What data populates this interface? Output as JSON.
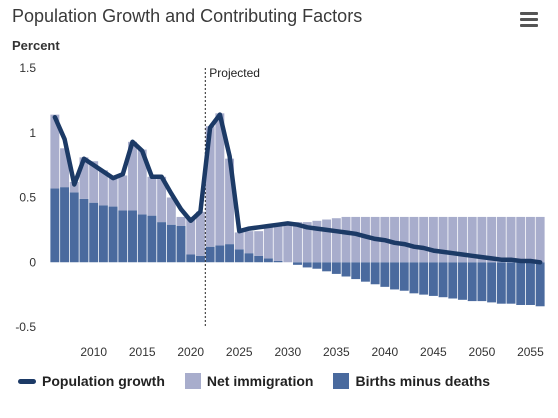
{
  "header": {
    "title": "Population Growth and Contributing Factors",
    "menu_icon": "hamburger-menu-icon"
  },
  "chart_data": {
    "type": "bar",
    "title": "Population Growth and Contributing Factors",
    "ylabel": "Percent",
    "xlabel": "",
    "ylim": [
      -0.5,
      1.5
    ],
    "xlim": [
      2005.5,
      2056.5
    ],
    "yticks": [
      1.5,
      1,
      0.5,
      0,
      -0.5
    ],
    "ytick_labels": [
      "1.5",
      "1",
      "0.5",
      "0",
      "-0.5"
    ],
    "xticks": [
      2010,
      2015,
      2020,
      2025,
      2030,
      2035,
      2040,
      2045,
      2050,
      2055
    ],
    "annotation": {
      "label": "Projected",
      "x": 2021.5
    },
    "years": [
      2006,
      2007,
      2008,
      2009,
      2010,
      2011,
      2012,
      2013,
      2014,
      2015,
      2016,
      2017,
      2018,
      2019,
      2020,
      2021,
      2022,
      2023,
      2024,
      2025,
      2026,
      2027,
      2028,
      2029,
      2030,
      2031,
      2032,
      2033,
      2034,
      2035,
      2036,
      2037,
      2038,
      2039,
      2040,
      2041,
      2042,
      2043,
      2044,
      2045,
      2046,
      2047,
      2048,
      2049,
      2050,
      2051,
      2052,
      2053,
      2054,
      2055,
      2056
    ],
    "series": [
      {
        "name": "Births minus deaths",
        "kind": "bar",
        "color": "#4a6a9e",
        "values": [
          0.57,
          0.58,
          0.54,
          0.49,
          0.46,
          0.44,
          0.43,
          0.4,
          0.4,
          0.37,
          0.36,
          0.31,
          0.29,
          0.28,
          0.06,
          0.05,
          0.12,
          0.13,
          0.14,
          0.1,
          0.07,
          0.05,
          0.03,
          0.01,
          0.0,
          -0.02,
          -0.04,
          -0.05,
          -0.07,
          -0.09,
          -0.11,
          -0.13,
          -0.15,
          -0.17,
          -0.19,
          -0.21,
          -0.22,
          -0.24,
          -0.25,
          -0.26,
          -0.27,
          -0.28,
          -0.29,
          -0.3,
          -0.3,
          -0.31,
          -0.32,
          -0.32,
          -0.33,
          -0.33,
          -0.34
        ]
      },
      {
        "name": "Net immigration",
        "kind": "bar",
        "color": "#a8adcc",
        "values": [
          0.57,
          0.3,
          0.08,
          0.32,
          0.32,
          0.27,
          0.22,
          0.27,
          0.53,
          0.5,
          0.3,
          0.35,
          0.21,
          0.07,
          0.29,
          0.34,
          0.93,
          1.02,
          0.66,
          0.13,
          0.17,
          0.19,
          0.24,
          0.27,
          0.3,
          0.31,
          0.31,
          0.32,
          0.33,
          0.34,
          0.35,
          0.35,
          0.35,
          0.35,
          0.35,
          0.35,
          0.35,
          0.35,
          0.35,
          0.35,
          0.35,
          0.35,
          0.35,
          0.35,
          0.35,
          0.35,
          0.35,
          0.35,
          0.35,
          0.35,
          0.35
        ]
      },
      {
        "name": "Population growth",
        "kind": "line",
        "color": "#1c3a66",
        "values": [
          1.12,
          0.95,
          0.6,
          0.8,
          0.75,
          0.7,
          0.65,
          0.68,
          0.93,
          0.86,
          0.66,
          0.66,
          0.53,
          0.41,
          0.32,
          0.39,
          1.04,
          1.14,
          0.82,
          0.24,
          0.26,
          0.27,
          0.28,
          0.29,
          0.3,
          0.29,
          0.27,
          0.26,
          0.25,
          0.24,
          0.23,
          0.22,
          0.2,
          0.18,
          0.17,
          0.15,
          0.14,
          0.12,
          0.11,
          0.09,
          0.08,
          0.07,
          0.06,
          0.05,
          0.04,
          0.03,
          0.02,
          0.02,
          0.01,
          0.01,
          0.0
        ]
      }
    ],
    "grid": false,
    "legend_position": "bottom"
  },
  "legend": {
    "items": [
      {
        "label": "Population growth",
        "color": "#1c3a66",
        "shape": "line"
      },
      {
        "label": "Net immigration",
        "color": "#a8adcc",
        "shape": "box"
      },
      {
        "label": "Births minus deaths",
        "color": "#4a6a9e",
        "shape": "box"
      }
    ]
  }
}
